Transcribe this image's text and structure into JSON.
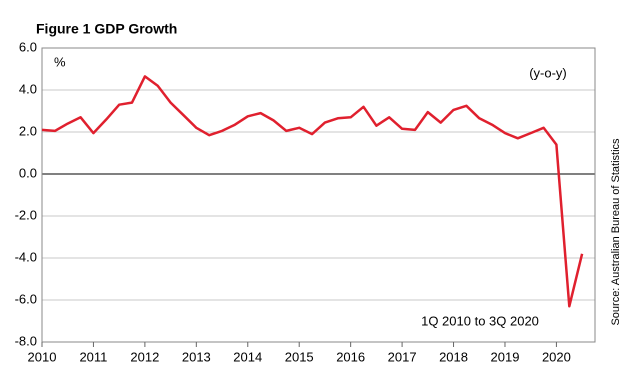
{
  "chart_data": {
    "type": "line",
    "title": "Figure 1 GDP Growth",
    "y_label": "%",
    "annotations": [
      "(y-o-y)",
      "1Q 2010 to 3Q 2020"
    ],
    "source": "Source: Australian Bureau of Statistics",
    "color": "#e0202e",
    "x": [
      2010,
      2010.25,
      2010.5,
      2010.75,
      2011,
      2011.25,
      2011.5,
      2011.75,
      2012,
      2012.25,
      2012.5,
      2012.75,
      2013,
      2013.25,
      2013.5,
      2013.75,
      2014,
      2014.25,
      2014.5,
      2014.75,
      2015,
      2015.25,
      2015.5,
      2015.75,
      2016,
      2016.25,
      2016.5,
      2016.75,
      2017,
      2017.25,
      2017.5,
      2017.75,
      2018,
      2018.25,
      2018.5,
      2018.75,
      2019,
      2019.25,
      2019.5,
      2019.75,
      2020,
      2020.25,
      2020.5
    ],
    "values": [
      2.1,
      2.05,
      2.4,
      2.7,
      1.95,
      2.6,
      3.3,
      3.4,
      4.65,
      4.2,
      3.4,
      2.8,
      2.2,
      1.85,
      2.05,
      2.35,
      2.75,
      2.9,
      2.55,
      2.05,
      2.2,
      1.9,
      2.45,
      2.65,
      2.7,
      3.2,
      2.3,
      2.7,
      2.15,
      2.1,
      2.95,
      2.45,
      3.05,
      3.25,
      2.65,
      2.35,
      1.95,
      1.7,
      1.95,
      2.2,
      1.4,
      -6.3,
      -3.8
    ],
    "xlim": [
      2010,
      2020.75
    ],
    "xticks": [
      2010,
      2011,
      2012,
      2013,
      2014,
      2015,
      2016,
      2017,
      2018,
      2019,
      2020
    ],
    "ylim": [
      -8,
      6
    ],
    "yticks": [
      {
        "value": -8,
        "label": "-8.0"
      },
      {
        "value": -6,
        "label": "-6.0"
      },
      {
        "value": -4,
        "label": "-4.0"
      },
      {
        "value": -2,
        "label": "-2.0"
      },
      {
        "value": 0,
        "label": "0.0"
      },
      {
        "value": 2,
        "label": "2.0"
      },
      {
        "value": 4,
        "label": "4.0"
      },
      {
        "value": 6,
        "label": "6.0"
      }
    ],
    "grid": true
  }
}
